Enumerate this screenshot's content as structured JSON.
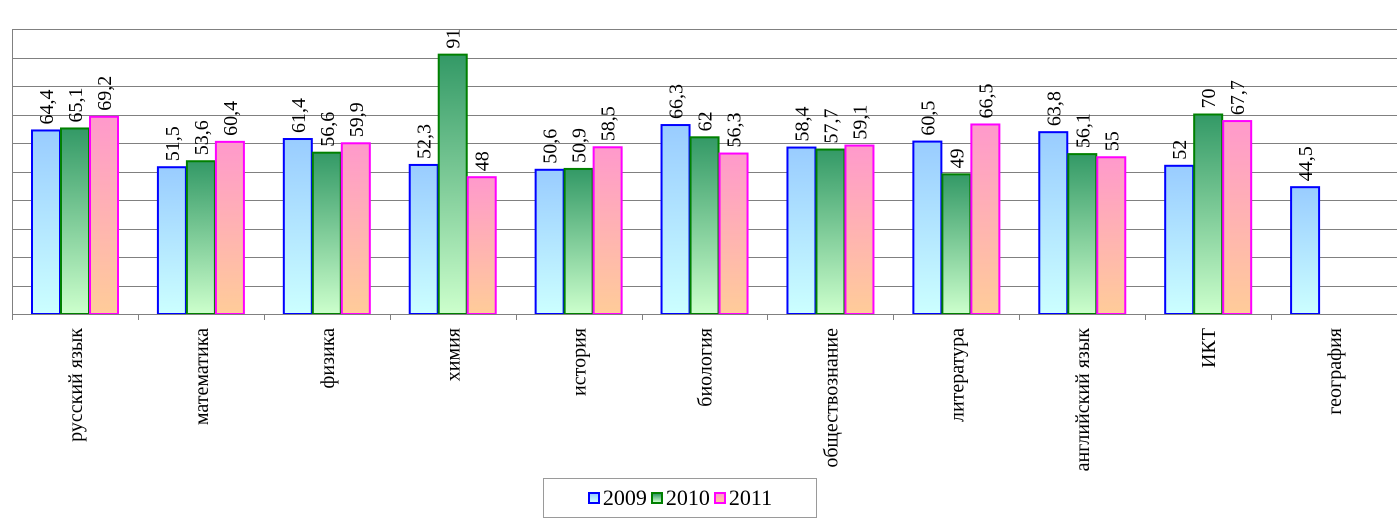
{
  "chart_data": {
    "type": "bar",
    "categories": [
      "русский язык",
      "математика",
      "физика",
      "химия",
      "история",
      "биология",
      "обществознание",
      "литература",
      "английский язык",
      "ИКТ",
      "география"
    ],
    "series": [
      {
        "name": "2009",
        "values": [
          64.4,
          51.5,
          61.4,
          52.3,
          50.6,
          66.3,
          58.4,
          60.5,
          63.8,
          52,
          44.5
        ],
        "labels": [
          "64,4",
          "51,5",
          "61,4",
          "52,3",
          "50,6",
          "66,3",
          "58,4",
          "60,5",
          "63,8",
          "52",
          "44,5"
        ],
        "fill_top": "#99ccff",
        "fill_bottom": "#ccffff",
        "stroke": "#0000ff"
      },
      {
        "name": "2010",
        "values": [
          65.1,
          53.6,
          56.6,
          91,
          50.9,
          62,
          57.7,
          49,
          56.1,
          70,
          null
        ],
        "labels": [
          "65,1",
          "53,6",
          "56,6",
          "91",
          "50,9",
          "62",
          "57,7",
          "49",
          "56,1",
          "70",
          ""
        ],
        "fill_top": "#339966",
        "fill_bottom": "#ccffcc",
        "stroke": "#008000"
      },
      {
        "name": "2011",
        "values": [
          69.2,
          60.4,
          59.9,
          48,
          58.5,
          56.3,
          59.1,
          66.5,
          55,
          67.7,
          null
        ],
        "labels": [
          "69,2",
          "60,4",
          "59,9",
          "48",
          "58,5",
          "56,3",
          "59,1",
          "66,5",
          "55",
          "67,7",
          ""
        ],
        "fill_top": "#ff99cc",
        "fill_bottom": "#ffcc99",
        "stroke": "#ff00ff"
      }
    ],
    "ylim": [
      0,
      100
    ],
    "grid": true,
    "legend_position": "bottom"
  }
}
